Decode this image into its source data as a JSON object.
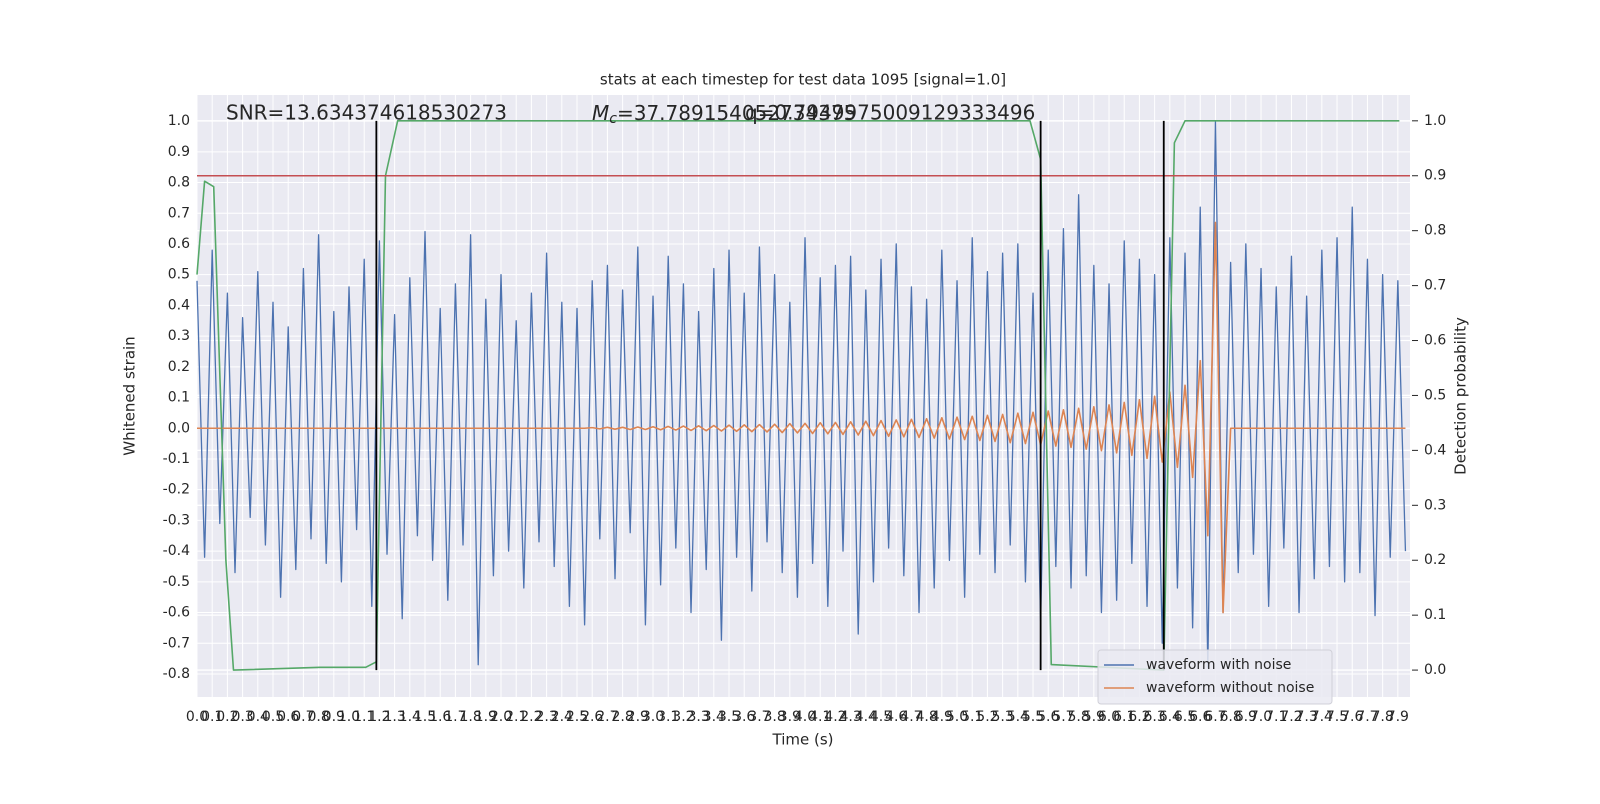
{
  "chart_data": {
    "type": "line",
    "title": "stats at each timestep for test data 1095 [signal=1.0]",
    "xlabel": "Time (s)",
    "ylabel": "Whitened strain",
    "y2label": "Detection probability",
    "annotations": {
      "snr": "SNR=13.634374618530273",
      "mc_symbol": "M",
      "mc_subscript": "c",
      "mc_value": "=37.789154052734375",
      "q": "q=0.7949975009129333496"
    },
    "xlim": [
      0,
      7.98
    ],
    "ylim": [
      -0.875,
      1.085
    ],
    "y2lim": [
      -0.049,
      1.047
    ],
    "grid": true,
    "legend": "lower right",
    "xticks": [
      {
        "value": 0,
        "label": "0.0"
      },
      0.1,
      0.2,
      0.3,
      0.4,
      0.5,
      0.6,
      0.7,
      0.8,
      0.9,
      {
        "value": 1,
        "label": "1.0"
      },
      1.1,
      1.2,
      1.3,
      1.4,
      1.5,
      1.6,
      1.7,
      1.8,
      1.9,
      {
        "value": 2,
        "label": "2.0"
      },
      2.1,
      2.2,
      2.3,
      2.4,
      2.5,
      2.6,
      2.7,
      2.8,
      2.9,
      {
        "value": 3,
        "label": "3.0"
      },
      3.1,
      3.2,
      3.3,
      3.4,
      3.5,
      3.6,
      3.7,
      3.8,
      3.9,
      {
        "value": 4,
        "label": "4.0"
      },
      4.1,
      4.2,
      4.3,
      4.4,
      4.5,
      4.6,
      4.7,
      4.8,
      4.9,
      {
        "value": 5,
        "label": "5.0"
      },
      5.1,
      5.2,
      5.3,
      5.4,
      5.5,
      5.6,
      5.7,
      5.8,
      5.9,
      {
        "value": 6,
        "label": "6.0"
      },
      6.1,
      6.2,
      6.3,
      6.4,
      6.5,
      6.6,
      6.7,
      6.8,
      6.9,
      {
        "value": 7,
        "label": "7.0"
      },
      7.1,
      7.2,
      7.3,
      7.4,
      7.5,
      7.6,
      7.7,
      7.8,
      7.9
    ],
    "yticks": [
      -0.8,
      -0.7,
      -0.6,
      -0.5,
      -0.4,
      -0.3,
      -0.2,
      -0.1,
      {
        "value": 0,
        "label": "0.0"
      },
      0.1,
      0.2,
      0.3,
      0.4,
      0.5,
      0.6,
      0.7,
      0.8,
      0.9,
      {
        "value": 1,
        "label": "1.0"
      }
    ],
    "y2ticks": [
      {
        "value": 0,
        "label": "0.0"
      },
      0.1,
      0.2,
      0.3,
      0.4,
      0.5,
      0.6,
      0.7,
      0.8,
      0.9,
      {
        "value": 1,
        "label": "1.0"
      }
    ],
    "x": [
      0,
      0.05,
      0.1,
      0.15,
      0.2,
      0.25,
      0.3,
      0.35,
      0.4,
      0.45,
      0.5,
      0.55,
      0.6,
      0.65,
      0.7,
      0.75,
      0.8,
      0.85,
      0.9,
      0.95,
      1,
      1.05,
      1.1,
      1.15,
      1.2,
      1.25,
      1.3,
      1.35,
      1.4,
      1.45,
      1.5,
      1.55,
      1.6,
      1.65,
      1.7,
      1.75,
      1.8,
      1.85,
      1.9,
      1.95,
      2,
      2.05,
      2.1,
      2.15,
      2.2,
      2.25,
      2.3,
      2.35,
      2.4,
      2.45,
      2.5,
      2.55,
      2.6,
      2.65,
      2.7,
      2.75,
      2.8,
      2.85,
      2.9,
      2.95,
      3,
      3.05,
      3.1,
      3.15,
      3.2,
      3.25,
      3.3,
      3.35,
      3.4,
      3.45,
      3.5,
      3.55,
      3.6,
      3.65,
      3.7,
      3.75,
      3.8,
      3.85,
      3.9,
      3.95,
      4,
      4.05,
      4.1,
      4.15,
      4.2,
      4.25,
      4.3,
      4.35,
      4.4,
      4.45,
      4.5,
      4.55,
      4.6,
      4.65,
      4.7,
      4.75,
      4.8,
      4.85,
      4.9,
      4.95,
      5,
      5.05,
      5.1,
      5.15,
      5.2,
      5.25,
      5.3,
      5.35,
      5.4,
      5.45,
      5.5,
      5.55,
      5.6,
      5.65,
      5.7,
      5.75,
      5.8,
      5.85,
      5.9,
      5.95,
      6,
      6.05,
      6.1,
      6.15,
      6.2,
      6.25,
      6.3,
      6.35,
      6.4,
      6.45,
      6.5,
      6.55,
      6.6,
      6.65,
      6.7,
      6.75,
      6.8,
      6.85,
      6.9,
      6.95,
      7,
      7.05,
      7.1,
      7.15,
      7.2,
      7.25,
      7.3,
      7.35,
      7.4,
      7.45,
      7.5,
      7.55,
      7.6,
      7.65,
      7.7,
      7.75,
      7.8,
      7.85,
      7.9,
      7.95
    ],
    "series": [
      {
        "name": "waveform with noise",
        "color": "#4c72b0",
        "values": [
          0.48,
          -0.42,
          0.58,
          -0.31,
          0.44,
          -0.47,
          0.36,
          -0.29,
          0.51,
          -0.38,
          0.41,
          -0.55,
          0.33,
          -0.46,
          0.52,
          -0.36,
          0.63,
          -0.44,
          0.38,
          -0.5,
          0.46,
          -0.33,
          0.55,
          -0.58,
          0.61,
          -0.41,
          0.37,
          -0.62,
          0.49,
          -0.35,
          0.64,
          -0.43,
          0.39,
          -0.56,
          0.47,
          -0.38,
          0.63,
          -0.77,
          0.42,
          -0.48,
          0.5,
          -0.4,
          0.35,
          -0.52,
          0.44,
          -0.37,
          0.57,
          -0.45,
          0.41,
          -0.58,
          0.39,
          -0.64,
          0.48,
          -0.36,
          0.53,
          -0.49,
          0.45,
          -0.34,
          0.59,
          -0.64,
          0.43,
          -0.51,
          0.56,
          -0.39,
          0.47,
          -0.6,
          0.38,
          -0.46,
          0.52,
          -0.69,
          0.58,
          -0.42,
          0.44,
          -0.53,
          0.59,
          -0.37,
          0.5,
          -0.47,
          0.41,
          -0.55,
          0.62,
          -0.44,
          0.49,
          -0.58,
          0.53,
          -0.4,
          0.56,
          -0.67,
          0.45,
          -0.5,
          0.55,
          -0.39,
          0.6,
          -0.48,
          0.46,
          -0.6,
          0.42,
          -0.52,
          0.58,
          -0.43,
          0.48,
          -0.55,
          0.62,
          -0.41,
          0.51,
          -0.47,
          0.57,
          -0.38,
          0.6,
          -0.5,
          0.44,
          -0.63,
          0.58,
          -0.45,
          0.65,
          -0.52,
          0.76,
          -0.48,
          0.53,
          -0.6,
          0.47,
          -0.56,
          0.61,
          -0.44,
          0.55,
          -0.58,
          0.5,
          -0.7,
          0.62,
          -0.52,
          0.57,
          -0.65,
          0.72,
          -0.78,
          1.0,
          -0.6,
          0.54,
          -0.47,
          0.6,
          -0.41,
          0.52,
          -0.58,
          0.46,
          -0.39,
          0.56,
          -0.6,
          0.43,
          -0.49,
          0.58,
          -0.45,
          0.62,
          -0.5,
          0.72,
          -0.47,
          0.55,
          -0.61,
          0.5,
          -0.42,
          0.48,
          -0.4
        ]
      },
      {
        "name": "waveform without noise",
        "color": "#dd8452",
        "values": [
          0,
          0,
          0,
          0,
          0,
          0,
          0,
          0,
          0,
          0,
          0,
          0,
          0,
          0,
          0,
          0,
          0,
          0,
          0,
          0,
          0,
          0,
          0,
          0,
          0,
          0,
          0,
          0,
          0,
          0,
          0,
          0,
          0,
          0,
          0,
          0,
          0,
          0,
          0,
          0,
          0,
          0,
          0,
          0,
          0,
          0,
          0,
          0,
          0,
          0,
          0,
          0,
          0.002,
          -0.002,
          0.003,
          -0.003,
          0.003,
          -0.004,
          0.004,
          -0.004,
          0.005,
          -0.005,
          0.006,
          -0.006,
          0.007,
          -0.007,
          0.008,
          -0.008,
          0.009,
          -0.009,
          0.01,
          -0.01,
          0.011,
          -0.011,
          0.012,
          -0.012,
          0.013,
          -0.014,
          0.015,
          -0.015,
          0.016,
          -0.017,
          0.018,
          -0.018,
          0.019,
          -0.02,
          0.021,
          -0.022,
          0.023,
          -0.024,
          0.025,
          -0.026,
          0.027,
          -0.028,
          0.029,
          -0.03,
          0.031,
          -0.032,
          0.034,
          -0.035,
          0.036,
          -0.037,
          0.039,
          -0.04,
          0.042,
          -0.043,
          0.045,
          -0.047,
          0.049,
          -0.05,
          0.052,
          -0.054,
          0.056,
          -0.058,
          0.06,
          -0.062,
          0.065,
          -0.068,
          0.07,
          -0.073,
          0.076,
          -0.08,
          0.084,
          -0.088,
          0.093,
          -0.098,
          0.104,
          -0.11,
          0.118,
          -0.127,
          0.14,
          -0.16,
          0.22,
          -0.35,
          0.67,
          -0.6,
          0,
          0,
          0,
          0,
          0,
          0,
          0,
          0,
          0,
          0,
          0,
          0,
          0,
          0,
          0,
          0,
          0,
          0,
          0,
          0,
          0,
          0,
          0,
          0
        ]
      },
      {
        "color": "#55a868",
        "axis": "y2",
        "x": [
          0,
          0.05,
          0.11,
          0.19,
          0.24,
          0.81,
          1.11,
          1.18,
          1.24,
          1.32,
          5.48,
          5.55,
          5.62,
          6.36,
          6.43,
          6.5,
          7.91
        ],
        "values": [
          0.72,
          0.89,
          0.88,
          0.2,
          0.0,
          0.005,
          0.005,
          0.015,
          0.9,
          1.0,
          1.0,
          0.93,
          0.01,
          0.0,
          0.96,
          1.0,
          1.0
        ]
      }
    ],
    "hlines": [
      {
        "value": 0.9,
        "color": "#c44e52",
        "axis": "y2"
      }
    ],
    "vlines": [
      {
        "x": 1.18,
        "range": [
          0,
          1
        ],
        "color": "#000000",
        "axis": "y2"
      },
      {
        "x": 5.55,
        "range": [
          0,
          1
        ],
        "color": "#000000",
        "axis": "y2"
      },
      {
        "x": 6.36,
        "range": [
          0,
          1
        ],
        "color": "#000000",
        "axis": "y2"
      }
    ]
  }
}
